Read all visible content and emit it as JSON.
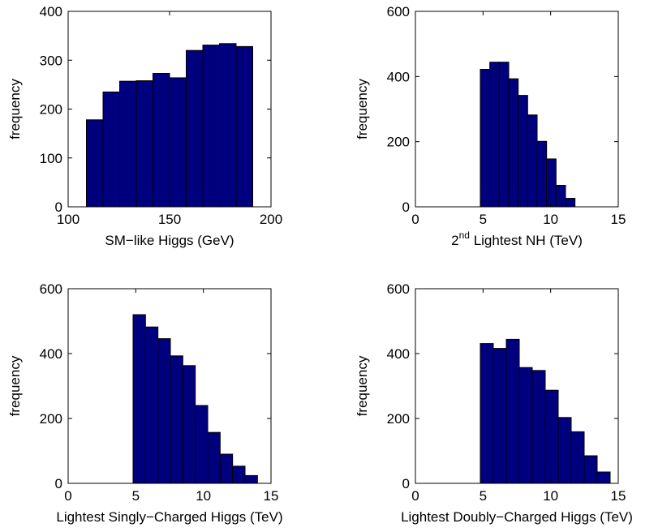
{
  "colors": {
    "bar_fill": "#00007f",
    "bar_edge": "#000000",
    "axes": "#000000",
    "background": "#ffffff"
  },
  "chart_data": [
    {
      "type": "bar",
      "title": "",
      "xlabel": "SM−like Higgs (GeV)",
      "ylabel": "frequency",
      "xlim": [
        100,
        200
      ],
      "ylim": [
        0,
        400
      ],
      "xticks": [
        100,
        150,
        200
      ],
      "yticks": [
        0,
        100,
        200,
        300,
        400
      ],
      "bin_edges": [
        109,
        117.2,
        125.4,
        133.6,
        141.8,
        150,
        158.2,
        166.4,
        174.6,
        182.8,
        191
      ],
      "values": [
        178,
        235,
        257,
        258,
        273,
        264,
        320,
        331,
        334,
        328
      ],
      "grid": false
    },
    {
      "type": "bar",
      "title": "",
      "xlabel_base": "2",
      "xlabel_sup": "nd",
      "xlabel_rest": " Lightest NH (TeV)",
      "ylabel": "frequency",
      "xlim": [
        0,
        15
      ],
      "ylim": [
        0,
        600
      ],
      "xticks": [
        0,
        5,
        10,
        15
      ],
      "yticks": [
        0,
        200,
        400,
        600
      ],
      "bin_edges": [
        4.8,
        5.5,
        6.2,
        6.9,
        7.6,
        8.3,
        9.0,
        9.7,
        10.4,
        11.1,
        11.8
      ],
      "values": [
        422,
        444,
        444,
        393,
        342,
        282,
        201,
        147,
        66,
        26
      ],
      "grid": false
    },
    {
      "type": "bar",
      "title": "",
      "xlabel": "Lightest Singly−Charged Higgs (TeV)",
      "ylabel": "frequency",
      "xlim": [
        0,
        15
      ],
      "ylim": [
        0,
        600
      ],
      "xticks": [
        0,
        5,
        10,
        15
      ],
      "yticks": [
        0,
        200,
        400,
        600
      ],
      "bin_edges": [
        4.8,
        5.72,
        6.64,
        7.56,
        8.48,
        9.4,
        10.32,
        11.24,
        12.16,
        13.08,
        14.0
      ],
      "values": [
        520,
        482,
        446,
        393,
        363,
        240,
        157,
        90,
        53,
        24
      ],
      "grid": false
    },
    {
      "type": "bar",
      "title": "",
      "xlabel": "Lightest Doubly−Charged Higgs (TeV)",
      "ylabel": "frequency",
      "xlim": [
        0,
        15
      ],
      "ylim": [
        0,
        600
      ],
      "xticks": [
        0,
        5,
        10,
        15
      ],
      "yticks": [
        0,
        200,
        400,
        600
      ],
      "bin_edges": [
        4.8,
        5.76,
        6.72,
        7.68,
        8.64,
        9.6,
        10.56,
        11.52,
        12.48,
        13.44,
        14.4
      ],
      "values": [
        431,
        416,
        444,
        357,
        348,
        287,
        203,
        159,
        85,
        35
      ],
      "grid": false
    }
  ]
}
